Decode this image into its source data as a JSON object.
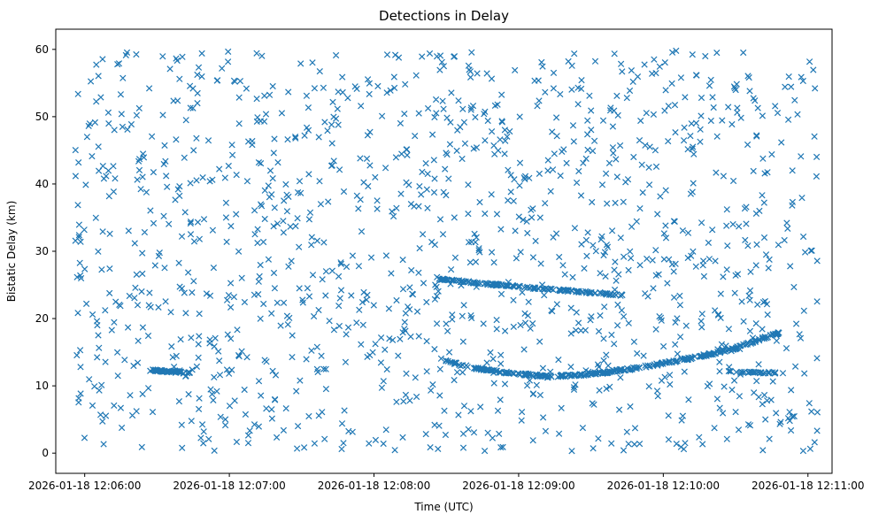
{
  "figure": {
    "background": "#ffffff",
    "axis_color": "#000000"
  },
  "chart_data": {
    "type": "scatter",
    "title": "Detections in Delay",
    "xlabel": "Time (UTC)",
    "ylabel": "Bistatic Delay (km)",
    "marker": {
      "shape": "x",
      "color": "#1f77b4"
    },
    "x_axis": {
      "kind": "time",
      "date": "2026-01-18",
      "domain": [
        "12:05:48",
        "12:11:10"
      ],
      "ticks": [
        {
          "time": "12:06:00",
          "label": "2026-01-18 12:06:00"
        },
        {
          "time": "12:07:00",
          "label": "2026-01-18 12:07:00"
        },
        {
          "time": "12:08:00",
          "label": "2026-01-18 12:08:00"
        },
        {
          "time": "12:09:00",
          "label": "2026-01-18 12:09:00"
        },
        {
          "time": "12:10:00",
          "label": "2026-01-18 12:10:00"
        },
        {
          "time": "12:11:00",
          "label": "2026-01-18 12:11:00"
        }
      ]
    },
    "y_axis": {
      "min": -3,
      "max": 63,
      "ticks": [
        {
          "value": 0,
          "label": "0"
        },
        {
          "value": 10,
          "label": "10"
        },
        {
          "value": 20,
          "label": "20"
        },
        {
          "value": 30,
          "label": "30"
        },
        {
          "value": 40,
          "label": "40"
        },
        {
          "value": 50,
          "label": "50"
        },
        {
          "value": 60,
          "label": "60"
        }
      ]
    },
    "series": [
      {
        "name": "clutter-noise",
        "kind": "uniform_random",
        "count": 1300,
        "seed": 20260118,
        "t_range": [
          "12:05:56",
          "12:11:04"
        ],
        "y_range": [
          0.3,
          59.8
        ]
      },
      {
        "name": "track-1",
        "kind": "track",
        "count": 55,
        "seed": 7,
        "jitter": 0.12,
        "points": [
          [
            "12:06:27",
            12.35
          ],
          [
            "12:06:34",
            12.15
          ],
          [
            "12:06:40",
            12.0
          ],
          [
            "12:06:44",
            11.9
          ]
        ]
      },
      {
        "name": "track-2",
        "kind": "track",
        "count": 160,
        "seed": 8,
        "jitter": 0.13,
        "points": [
          [
            "12:08:27",
            25.85
          ],
          [
            "12:08:37",
            25.5
          ],
          [
            "12:08:50",
            25.05
          ],
          [
            "12:09:03",
            24.65
          ],
          [
            "12:09:16",
            24.25
          ],
          [
            "12:09:30",
            23.85
          ],
          [
            "12:09:44",
            23.45
          ]
        ]
      },
      {
        "name": "track-3",
        "kind": "track",
        "count": 320,
        "seed": 9,
        "jitter": 0.16,
        "points": [
          [
            "12:08:27",
            14.0
          ],
          [
            "12:08:36",
            13.1
          ],
          [
            "12:08:46",
            12.4
          ],
          [
            "12:08:58",
            11.85
          ],
          [
            "12:09:12",
            11.4
          ],
          [
            "12:09:24",
            11.55
          ],
          [
            "12:09:36",
            12.0
          ],
          [
            "12:09:50",
            12.7
          ],
          [
            "12:10:04",
            13.6
          ],
          [
            "12:10:18",
            14.6
          ],
          [
            "12:10:30",
            15.6
          ],
          [
            "12:10:40",
            16.9
          ],
          [
            "12:10:48",
            17.85
          ]
        ]
      },
      {
        "name": "track-4",
        "kind": "track",
        "count": 32,
        "seed": 11,
        "jitter": 0.12,
        "points": [
          [
            "12:10:26",
            12.15
          ],
          [
            "12:10:38",
            12.0
          ],
          [
            "12:10:50",
            11.9
          ]
        ]
      }
    ]
  }
}
